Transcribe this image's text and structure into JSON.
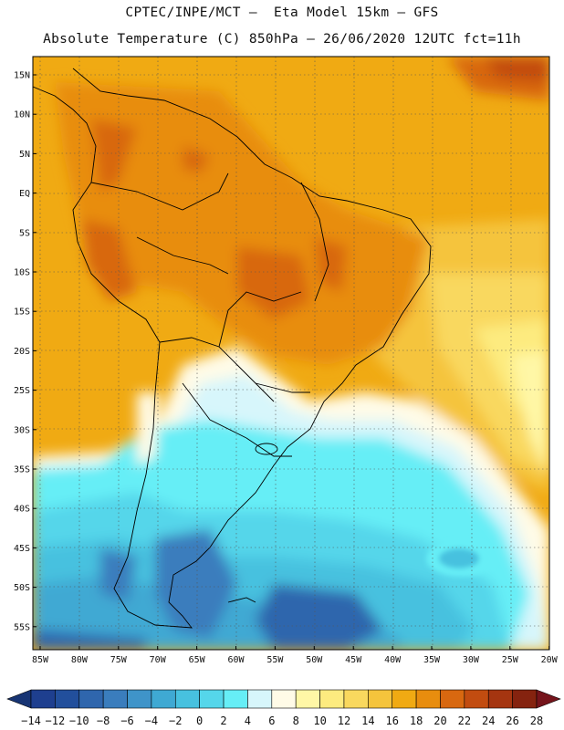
{
  "header": {
    "line1": "CPTEC/INPE/MCT –  Eta Model 15km – GFS",
    "line2": "Absolute Temperature (C) 850hPa – 26/06/2020 12UTC fct=11h"
  },
  "map": {
    "lat_ticks": [
      "15N",
      "10N",
      "5N",
      "EQ",
      "5S",
      "10S",
      "15S",
      "20S",
      "25S",
      "30S",
      "35S",
      "40S",
      "45S",
      "50S",
      "55S"
    ],
    "lon_ticks": [
      "85W",
      "80W",
      "75W",
      "70W",
      "65W",
      "60W",
      "55W",
      "50W",
      "45W",
      "40W",
      "35W",
      "30W",
      "25W",
      "20W"
    ],
    "gridlines": true
  },
  "colorbar": {
    "labels": [
      "-14",
      "-12",
      "-10",
      "-8",
      "-6",
      "-4",
      "-2",
      "0",
      "2",
      "4",
      "6",
      "8",
      "10",
      "12",
      "14",
      "16",
      "18",
      "20",
      "22",
      "24",
      "26",
      "28"
    ],
    "colors": [
      "#1e3f8f",
      "#224f9c",
      "#2f66ad",
      "#3a7dbd",
      "#3f94c9",
      "#3fa9d3",
      "#47c1df",
      "#55d6ea",
      "#66eef6",
      "#d7f6fb",
      "#fffbe7",
      "#fff7a6",
      "#fdeb7f",
      "#f9d85e",
      "#f5c43c",
      "#f0aa13",
      "#e88d0e",
      "#d86810",
      "#c24c10",
      "#a53510",
      "#85230f"
    ],
    "under_color": "#173473",
    "over_color": "#75141b"
  }
}
